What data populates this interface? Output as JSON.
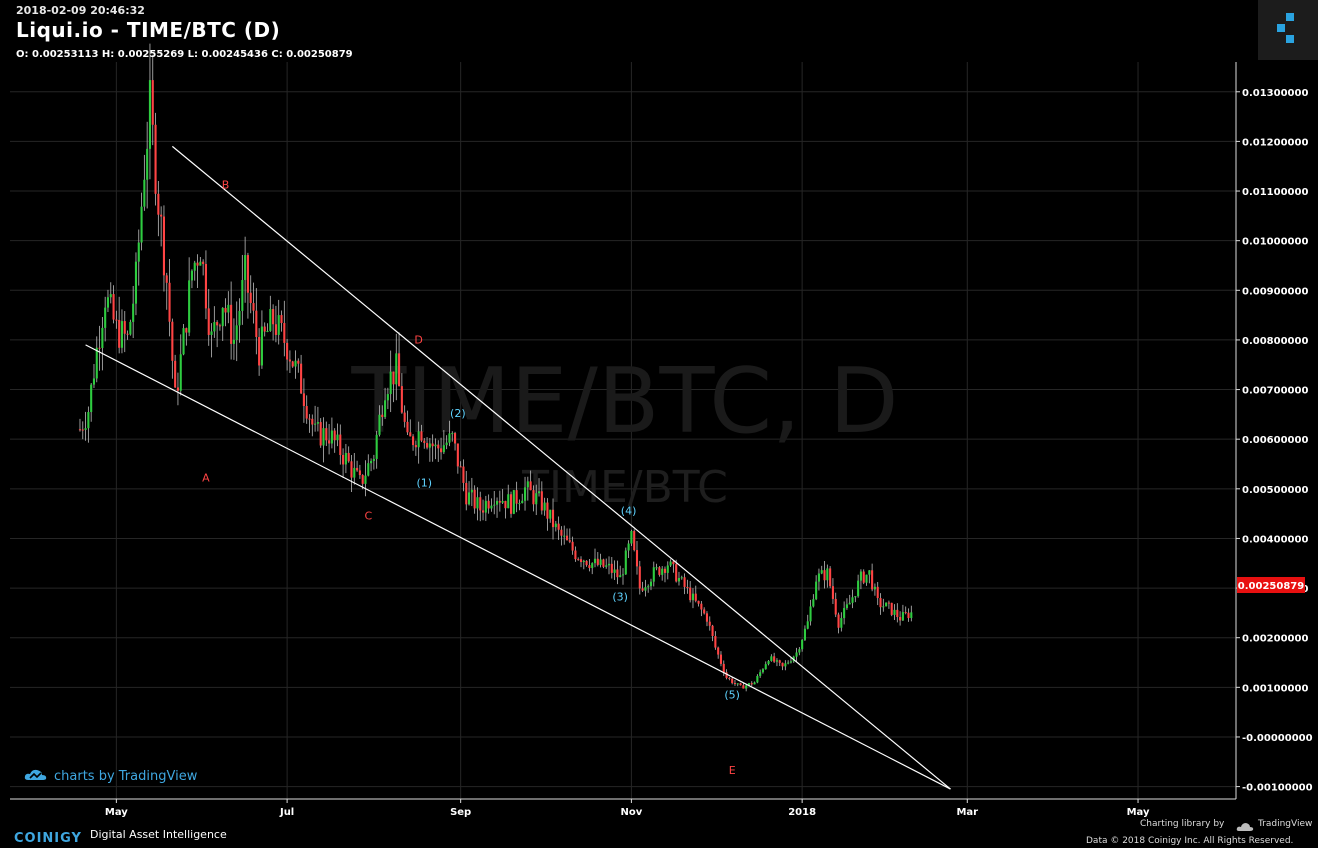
{
  "header": {
    "timestamp": "2018-02-09 20:46:32",
    "title": "Liqui.io - TIME/BTC (D)",
    "ohlc": "O: 0.00253113 H: 0.00255269 L: 0.00245436 C: 0.00250879"
  },
  "watermark": {
    "main": "TIME/BTC, D",
    "sub": "TIME/BTC"
  },
  "branding": {
    "tradingview": "charts by TradingView",
    "coinigy": "COINIGY",
    "tagline": "Digital Asset Intelligence",
    "charting_library": "Charting library by",
    "tv_small": "TradingView",
    "copyright": "Data © 2018  Coinigy Inc. All Rights Reserved."
  },
  "colors": {
    "up": "#2ecc40",
    "down": "#ff4444",
    "label_red": "#ff4444",
    "label_cyan": "#5fd3ff",
    "last_price_bg": "#e81010"
  },
  "chart_data": {
    "type": "candlestick",
    "title": "Liqui.io - TIME/BTC (D)",
    "x_ticks": [
      "May",
      "Jul",
      "Sep",
      "Nov",
      "2018",
      "Mar",
      "May"
    ],
    "y_ticks": [
      "0.01300000",
      "0.01200000",
      "0.01100000",
      "0.01000000",
      "0.00900000",
      "0.00800000",
      "0.00700000",
      "0.00600000",
      "0.00500000",
      "0.00400000",
      "0.00300000",
      "0.00200000",
      "0.00100000",
      "-0.00000000",
      "-0.00100000"
    ],
    "ylim": [
      -0.00125,
      0.0136
    ],
    "xlim": [
      "2017-03-24",
      "2018-06-05"
    ],
    "last_price": "0.00250879",
    "price_path": [
      [
        "2017-04-18",
        0.0062
      ],
      [
        "2017-04-21",
        0.0066
      ],
      [
        "2017-04-24",
        0.0078
      ],
      [
        "2017-04-27",
        0.0089
      ],
      [
        "2017-05-01",
        0.0082
      ],
      [
        "2017-05-05",
        0.008
      ],
      [
        "2017-05-08",
        0.0092
      ],
      [
        "2017-05-11",
        0.0115
      ],
      [
        "2017-05-13",
        0.0127
      ],
      [
        "2017-05-16",
        0.0108
      ],
      [
        "2017-05-19",
        0.0092
      ],
      [
        "2017-05-22",
        0.0068
      ],
      [
        "2017-05-25",
        0.008
      ],
      [
        "2017-05-28",
        0.0094
      ],
      [
        "2017-05-31",
        0.0099
      ],
      [
        "2017-06-04",
        0.008
      ],
      [
        "2017-06-08",
        0.0088
      ],
      [
        "2017-06-12",
        0.008
      ],
      [
        "2017-06-16",
        0.0093
      ],
      [
        "2017-06-21",
        0.0078
      ],
      [
        "2017-06-26",
        0.0084
      ],
      [
        "2017-07-01",
        0.0079
      ],
      [
        "2017-07-06",
        0.0071
      ],
      [
        "2017-07-11",
        0.0061
      ],
      [
        "2017-07-16",
        0.0061
      ],
      [
        "2017-07-22",
        0.0056
      ],
      [
        "2017-07-27",
        0.0051
      ],
      [
        "2017-08-01",
        0.0057
      ],
      [
        "2017-08-05",
        0.0071
      ],
      [
        "2017-08-09",
        0.0074
      ],
      [
        "2017-08-13",
        0.0059
      ],
      [
        "2017-08-18",
        0.0062
      ],
      [
        "2017-08-23",
        0.0058
      ],
      [
        "2017-08-29",
        0.006
      ],
      [
        "2017-09-03",
        0.0049
      ],
      [
        "2017-09-08",
        0.0046
      ],
      [
        "2017-09-13",
        0.0049
      ],
      [
        "2017-09-19",
        0.0047
      ],
      [
        "2017-09-24",
        0.005
      ],
      [
        "2017-09-30",
        0.0047
      ],
      [
        "2017-10-06",
        0.0041
      ],
      [
        "2017-10-12",
        0.0037
      ],
      [
        "2017-10-18",
        0.0035
      ],
      [
        "2017-10-24",
        0.0034
      ],
      [
        "2017-10-28",
        0.0032
      ],
      [
        "2017-11-01",
        0.004
      ],
      [
        "2017-11-04",
        0.003
      ],
      [
        "2017-11-09",
        0.0033
      ],
      [
        "2017-11-14",
        0.0035
      ],
      [
        "2017-11-19",
        0.0031
      ],
      [
        "2017-11-24",
        0.0027
      ],
      [
        "2017-11-28",
        0.0024
      ],
      [
        "2017-12-01",
        0.0018
      ],
      [
        "2017-12-05",
        0.0012
      ],
      [
        "2017-12-10",
        0.001
      ],
      [
        "2017-12-15",
        0.0011
      ],
      [
        "2017-12-20",
        0.0016
      ],
      [
        "2017-12-25",
        0.0014
      ],
      [
        "2017-12-30",
        0.0017
      ],
      [
        "2018-01-03",
        0.0023
      ],
      [
        "2018-01-06",
        0.0032
      ],
      [
        "2018-01-10",
        0.0033
      ],
      [
        "2018-01-14",
        0.0023
      ],
      [
        "2018-01-18",
        0.0027
      ],
      [
        "2018-01-22",
        0.0032
      ],
      [
        "2018-01-25",
        0.0033
      ],
      [
        "2018-01-28",
        0.0027
      ],
      [
        "2018-02-01",
        0.0026
      ],
      [
        "2018-02-05",
        0.0024
      ],
      [
        "2018-02-09",
        0.0025
      ]
    ],
    "trendlines": [
      {
        "from": [
          "2017-05-21",
          0.0119
        ],
        "to": [
          "2018-02-23",
          -0.00105
        ]
      },
      {
        "from": [
          "2017-04-20",
          0.0079
        ],
        "to": [
          "2018-02-23",
          -0.00105
        ]
      }
    ],
    "annotations": [
      {
        "text": "A",
        "date": "2017-06-02",
        "price": 0.00515,
        "color": "red"
      },
      {
        "text": "B",
        "date": "2017-06-09",
        "price": 0.01105,
        "color": "red"
      },
      {
        "text": "C",
        "date": "2017-07-30",
        "price": 0.00438,
        "color": "red"
      },
      {
        "text": "D",
        "date": "2017-08-17",
        "price": 0.00793,
        "color": "red"
      },
      {
        "text": "E",
        "date": "2017-12-07",
        "price": -0.00075,
        "color": "red"
      },
      {
        "text": "(1)",
        "date": "2017-08-19",
        "price": 0.00505,
        "color": "cyan"
      },
      {
        "text": "(2)",
        "date": "2017-08-31",
        "price": 0.00645,
        "color": "cyan"
      },
      {
        "text": "(3)",
        "date": "2017-10-28",
        "price": 0.00275,
        "color": "cyan"
      },
      {
        "text": "(4)",
        "date": "2017-10-31",
        "price": 0.00448,
        "color": "cyan"
      },
      {
        "text": "(5)",
        "date": "2017-12-07",
        "price": 0.00078,
        "color": "cyan"
      }
    ]
  }
}
